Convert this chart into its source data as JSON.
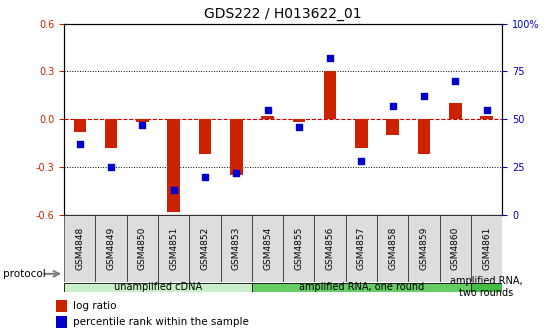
{
  "title": "GDS222 / H013622_01",
  "samples": [
    "GSM4848",
    "GSM4849",
    "GSM4850",
    "GSM4851",
    "GSM4852",
    "GSM4853",
    "GSM4854",
    "GSM4855",
    "GSM4856",
    "GSM4857",
    "GSM4858",
    "GSM4859",
    "GSM4860",
    "GSM4861"
  ],
  "log_ratio": [
    -0.08,
    -0.18,
    -0.02,
    -0.58,
    -0.22,
    -0.35,
    0.02,
    -0.02,
    0.3,
    -0.18,
    -0.1,
    -0.22,
    0.1,
    0.02
  ],
  "percentile_vals": [
    37,
    25,
    47,
    13,
    20,
    22,
    55,
    46,
    82,
    28,
    57,
    62,
    70,
    55
  ],
  "ylim": [
    -0.6,
    0.6
  ],
  "yticks_left": [
    -0.6,
    -0.3,
    0.0,
    0.3,
    0.6
  ],
  "yticks_right": [
    0,
    25,
    50,
    75,
    100
  ],
  "protocol_groups": [
    {
      "label": "unamplified cDNA",
      "start": 0,
      "end": 5,
      "color": "#c8f0c8"
    },
    {
      "label": "amplified RNA, one round",
      "start": 6,
      "end": 12,
      "color": "#66cc66"
    },
    {
      "label": "amplified RNA,\ntwo rounds",
      "start": 13,
      "end": 13,
      "color": "#44bb44"
    }
  ],
  "bar_color": "#cc2200",
  "dot_color": "#0000cc",
  "ref_line_color": "#cc0000",
  "bg_color": "#ffffff",
  "title_fontsize": 10,
  "tick_fontsize": 7,
  "label_fontsize": 7.5
}
